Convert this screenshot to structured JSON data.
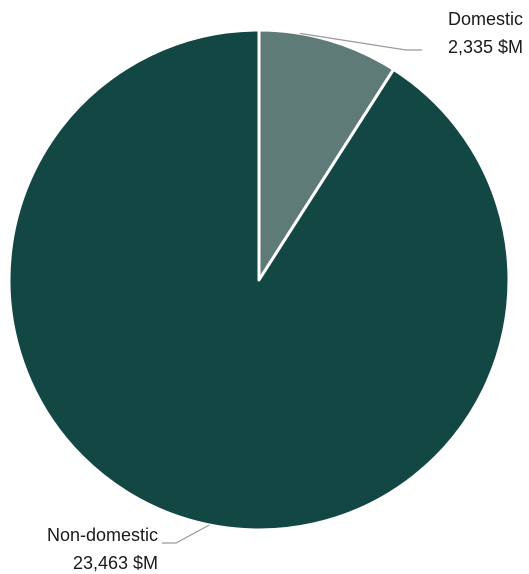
{
  "chart_data": {
    "type": "pie",
    "title": "",
    "unit": "$M",
    "slices": [
      {
        "name": "Domestic",
        "value": 2335,
        "value_label": "2,335 $M",
        "color": "#5e7b78"
      },
      {
        "name": "Non-domestic",
        "value": 23463,
        "value_label": "23,463 $M",
        "color": "#124744"
      }
    ],
    "start_angle_deg": 0,
    "direction": "clockwise",
    "separator_color": "#ffffff",
    "leader_line_color": "#999999",
    "legend": "none"
  }
}
